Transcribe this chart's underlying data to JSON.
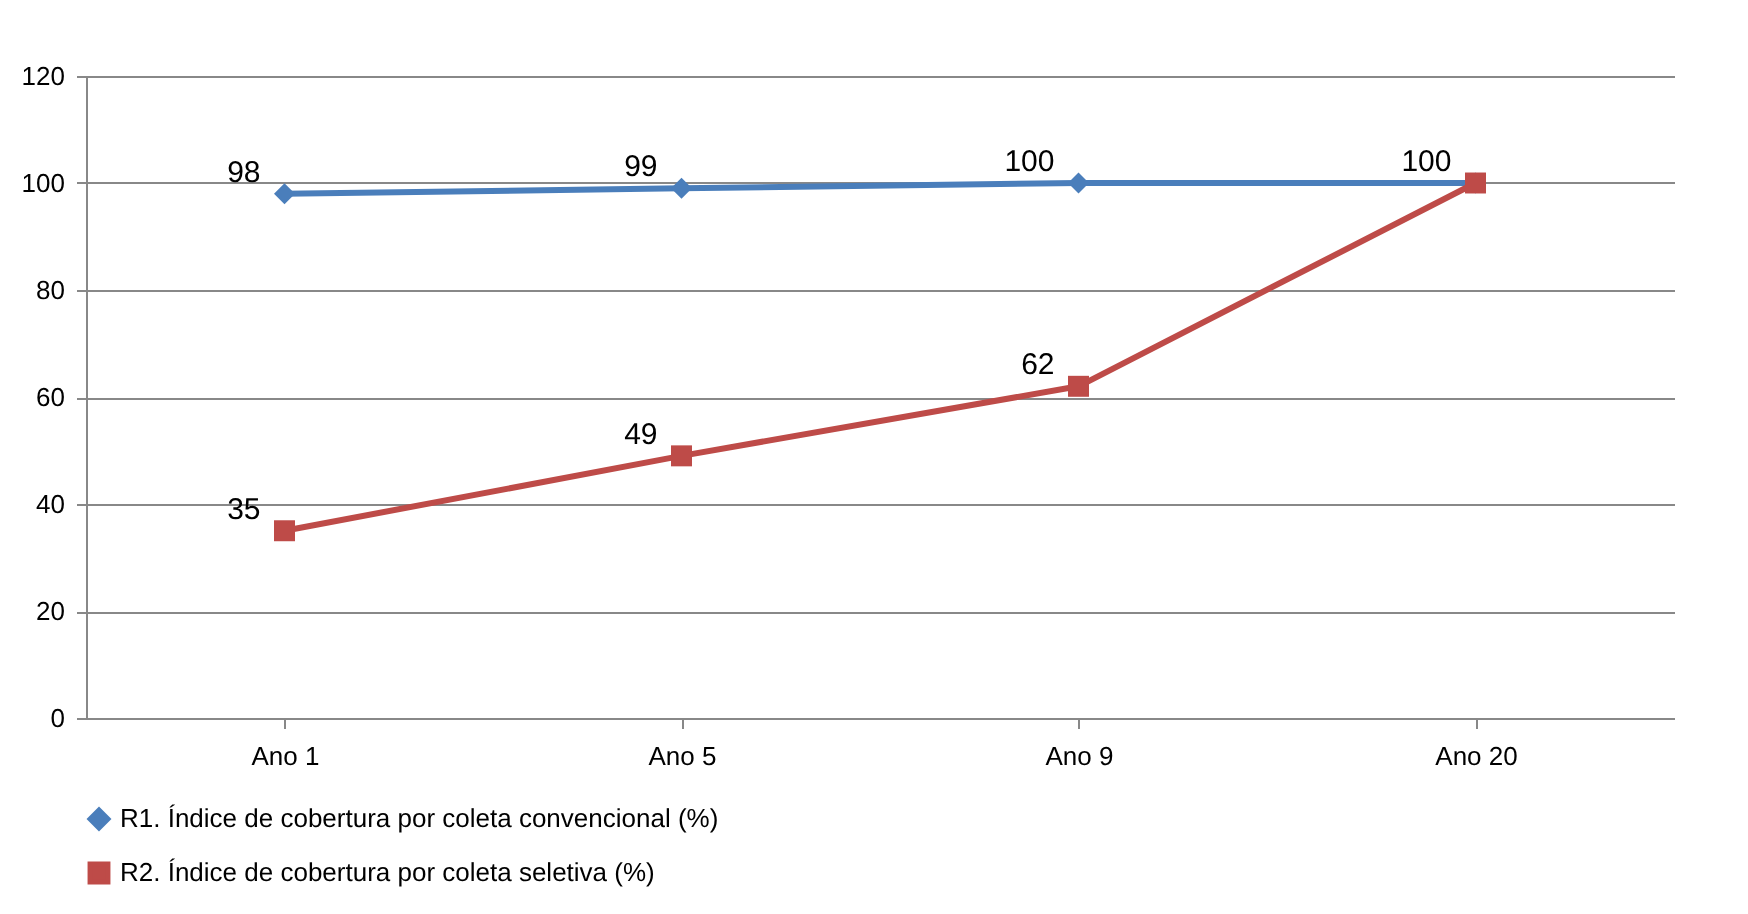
{
  "chart_data": {
    "type": "line",
    "categories": [
      "Ano 1",
      "Ano 5",
      "Ano 9",
      "Ano 20"
    ],
    "series": [
      {
        "name": "R1. Índice de cobertura por coleta convencional (%)",
        "color": "#4a7ebb",
        "marker": "diamond",
        "values": [
          98,
          99,
          100,
          100
        ],
        "value_labels": [
          "98",
          "99",
          "100",
          "100"
        ]
      },
      {
        "name": "R2. Índice de cobertura por coleta seletiva (%)",
        "color": "#be4b48",
        "marker": "square",
        "values": [
          35,
          49,
          62,
          100
        ],
        "value_labels": [
          "35",
          "49",
          "62",
          null
        ]
      }
    ],
    "ylim": [
      0,
      120
    ],
    "yticks": [
      0,
      20,
      40,
      60,
      80,
      100,
      120
    ],
    "grid": "y",
    "legend": "bottom",
    "line_style": "solid"
  }
}
